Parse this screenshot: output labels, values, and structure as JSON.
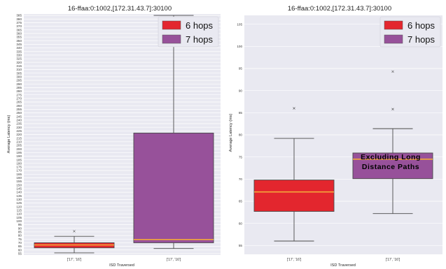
{
  "chart_data": [
    {
      "type": "box",
      "title": "16-ffaa:0:1002,[172.31.43.7]:30100",
      "xlabel": "ISD Traversed",
      "ylabel": "Average Latency (ms)",
      "categories": [
        "['17', '16']",
        "['17', '16']"
      ],
      "ylim": [
        53,
        387
      ],
      "yticks": [
        55,
        60,
        65,
        70,
        75,
        80,
        85,
        90,
        95,
        100,
        105,
        110,
        115,
        120,
        125,
        130,
        135,
        140,
        145,
        150,
        155,
        160,
        165,
        170,
        175,
        180,
        185,
        190,
        195,
        200,
        205,
        210,
        215,
        220,
        225,
        230,
        235,
        240,
        245,
        250,
        255,
        260,
        265,
        270,
        275,
        280,
        285,
        290,
        295,
        300,
        305,
        310,
        315,
        320,
        325,
        330,
        335,
        340,
        345,
        350,
        355,
        360,
        365,
        370,
        375,
        380,
        385
      ],
      "grid": true,
      "legend": {
        "position": "top-right",
        "entries": [
          "6 hops",
          "7 hops"
        ]
      },
      "series": [
        {
          "name": "6 hops",
          "color": "#e3262e",
          "whisker_low": 56,
          "q1": 63,
          "median": 67,
          "q3": 70,
          "whisker_high": 79,
          "outliers": [
            86
          ]
        },
        {
          "name": "7 hops",
          "color": "#97519a",
          "whisker_low": 62,
          "q1": 70,
          "median": 74.5,
          "q3": 222,
          "whisker_high": 385,
          "outliers": []
        }
      ]
    },
    {
      "type": "box",
      "title": "16-ffaa:0:1002,[172.31.43.7]:30100",
      "xlabel": "ISD Traversed",
      "ylabel": "Average Latency (ms)",
      "categories": [
        "['17', '16']",
        "['17', '16']"
      ],
      "ylim": [
        53,
        107
      ],
      "yticks": [
        55,
        60,
        65,
        70,
        75,
        80,
        85,
        90,
        95,
        100,
        105
      ],
      "grid": true,
      "legend": {
        "position": "top-right",
        "entries": [
          "6 hops",
          "7 hops"
        ]
      },
      "annotation": "Excluding Long Distance Paths",
      "series": [
        {
          "name": "6 hops",
          "color": "#e3262e",
          "whisker_low": 56,
          "q1": 62.7,
          "median": 67.1,
          "q3": 69.8,
          "whisker_high": 79.2,
          "outliers": [
            86
          ]
        },
        {
          "name": "7 hops",
          "color": "#97519a",
          "whisker_low": 62.2,
          "q1": 70.1,
          "median": 74.5,
          "q3": 75.9,
          "whisker_high": 81.4,
          "outliers": [
            85.8,
            94.3
          ]
        }
      ]
    }
  ]
}
